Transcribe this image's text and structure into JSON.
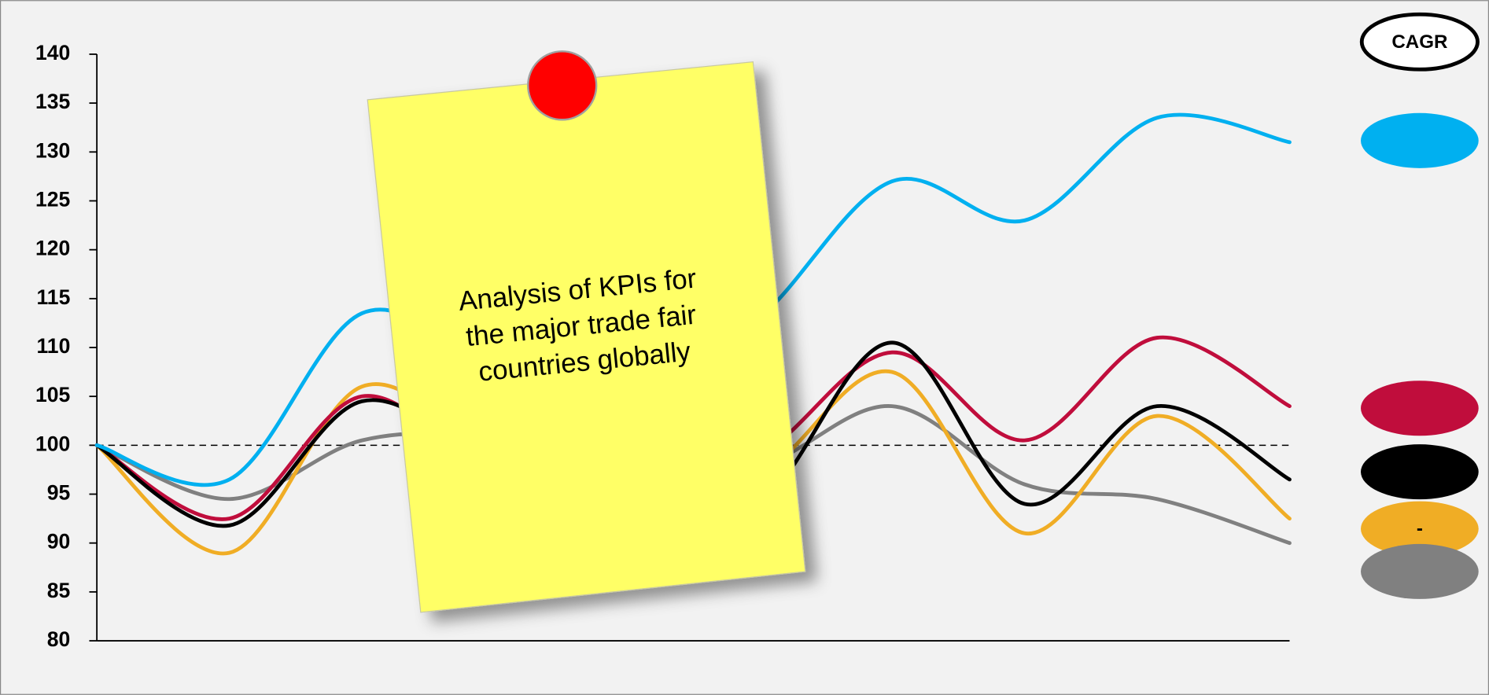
{
  "chart_data": {
    "type": "line",
    "categories": [
      null,
      null,
      null,
      null,
      null,
      null,
      null,
      null,
      null,
      null
    ],
    "series": [
      {
        "color": "#00b0f0",
        "values": [
          100,
          96.5,
          113.5,
          108,
          104,
          113,
          127,
          123,
          133.5,
          131
        ]
      },
      {
        "color": "#c00d3c",
        "values": [
          100,
          92.5,
          105,
          97,
          96,
          99,
          109.5,
          100.5,
          111,
          104
        ]
      },
      {
        "color": "#000000",
        "values": [
          100,
          91.8,
          104.5,
          98,
          93,
          94,
          110.5,
          94,
          104,
          96.5
        ]
      },
      {
        "color": "#f0ad25",
        "values": [
          100,
          89,
          106,
          99,
          95,
          97,
          107.5,
          91,
          103,
          92.5
        ],
        "cagr": "-"
      },
      {
        "color": "#808080",
        "values": [
          100,
          94.5,
          100.5,
          101,
          99,
          98,
          104,
          96,
          94.5,
          90
        ]
      }
    ],
    "ylim": [
      80,
      140
    ],
    "yticks": [
      80,
      85,
      90,
      95,
      100,
      105,
      110,
      115,
      120,
      125,
      130,
      135,
      140
    ],
    "reference_line": 100,
    "legend_title": "CAGR",
    "annotation_lines": [
      "Analysis of KPIs for",
      "the major trade fair",
      "countries globally"
    ]
  }
}
